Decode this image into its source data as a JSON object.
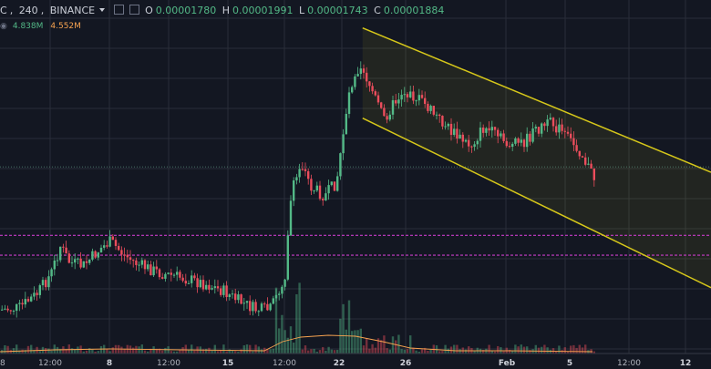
{
  "header": {
    "symbol": "C",
    "interval": "240",
    "exchange": "BINANCE",
    "o_label": "O",
    "o_value": "0.00001780",
    "h_label": "H",
    "h_value": "0.00001991",
    "l_label": "L",
    "l_value": "0.00001743",
    "c_label": "C",
    "c_value": "0.00001884",
    "vol1": "4.838M",
    "vol2": "4.552M"
  },
  "colors": {
    "background": "#131722",
    "grid": "#2a2e39",
    "up": "#53b987",
    "down": "#eb4d5c",
    "channel": "#d6c71a",
    "support": "#c83cc8",
    "volume_ma": "#f7a350"
  },
  "chart_data": {
    "type": "candlestick",
    "x_axis_labels": [
      "8",
      "12:00",
      "8",
      "12:00",
      "15",
      "12:00",
      "22",
      "26",
      "Feb",
      "5",
      "12:00",
      "12"
    ],
    "x_axis_bold": [
      false,
      false,
      true,
      false,
      true,
      false,
      true,
      true,
      true,
      true,
      false,
      true
    ],
    "channel": {
      "upper": [
        [
          0.51,
          1.9e-05
        ],
        [
          1.0,
          1.5e-05
        ]
      ],
      "lower": [
        [
          0.51,
          1.65e-05
        ],
        [
          1.0,
          1.18e-05
        ]
      ]
    },
    "horizontal_levels": [
      1.325e-05,
      1.27e-05
    ],
    "current_price_line": 1.515e-05,
    "y_range": [
      1.01e-05,
      1.97e-05
    ]
  }
}
